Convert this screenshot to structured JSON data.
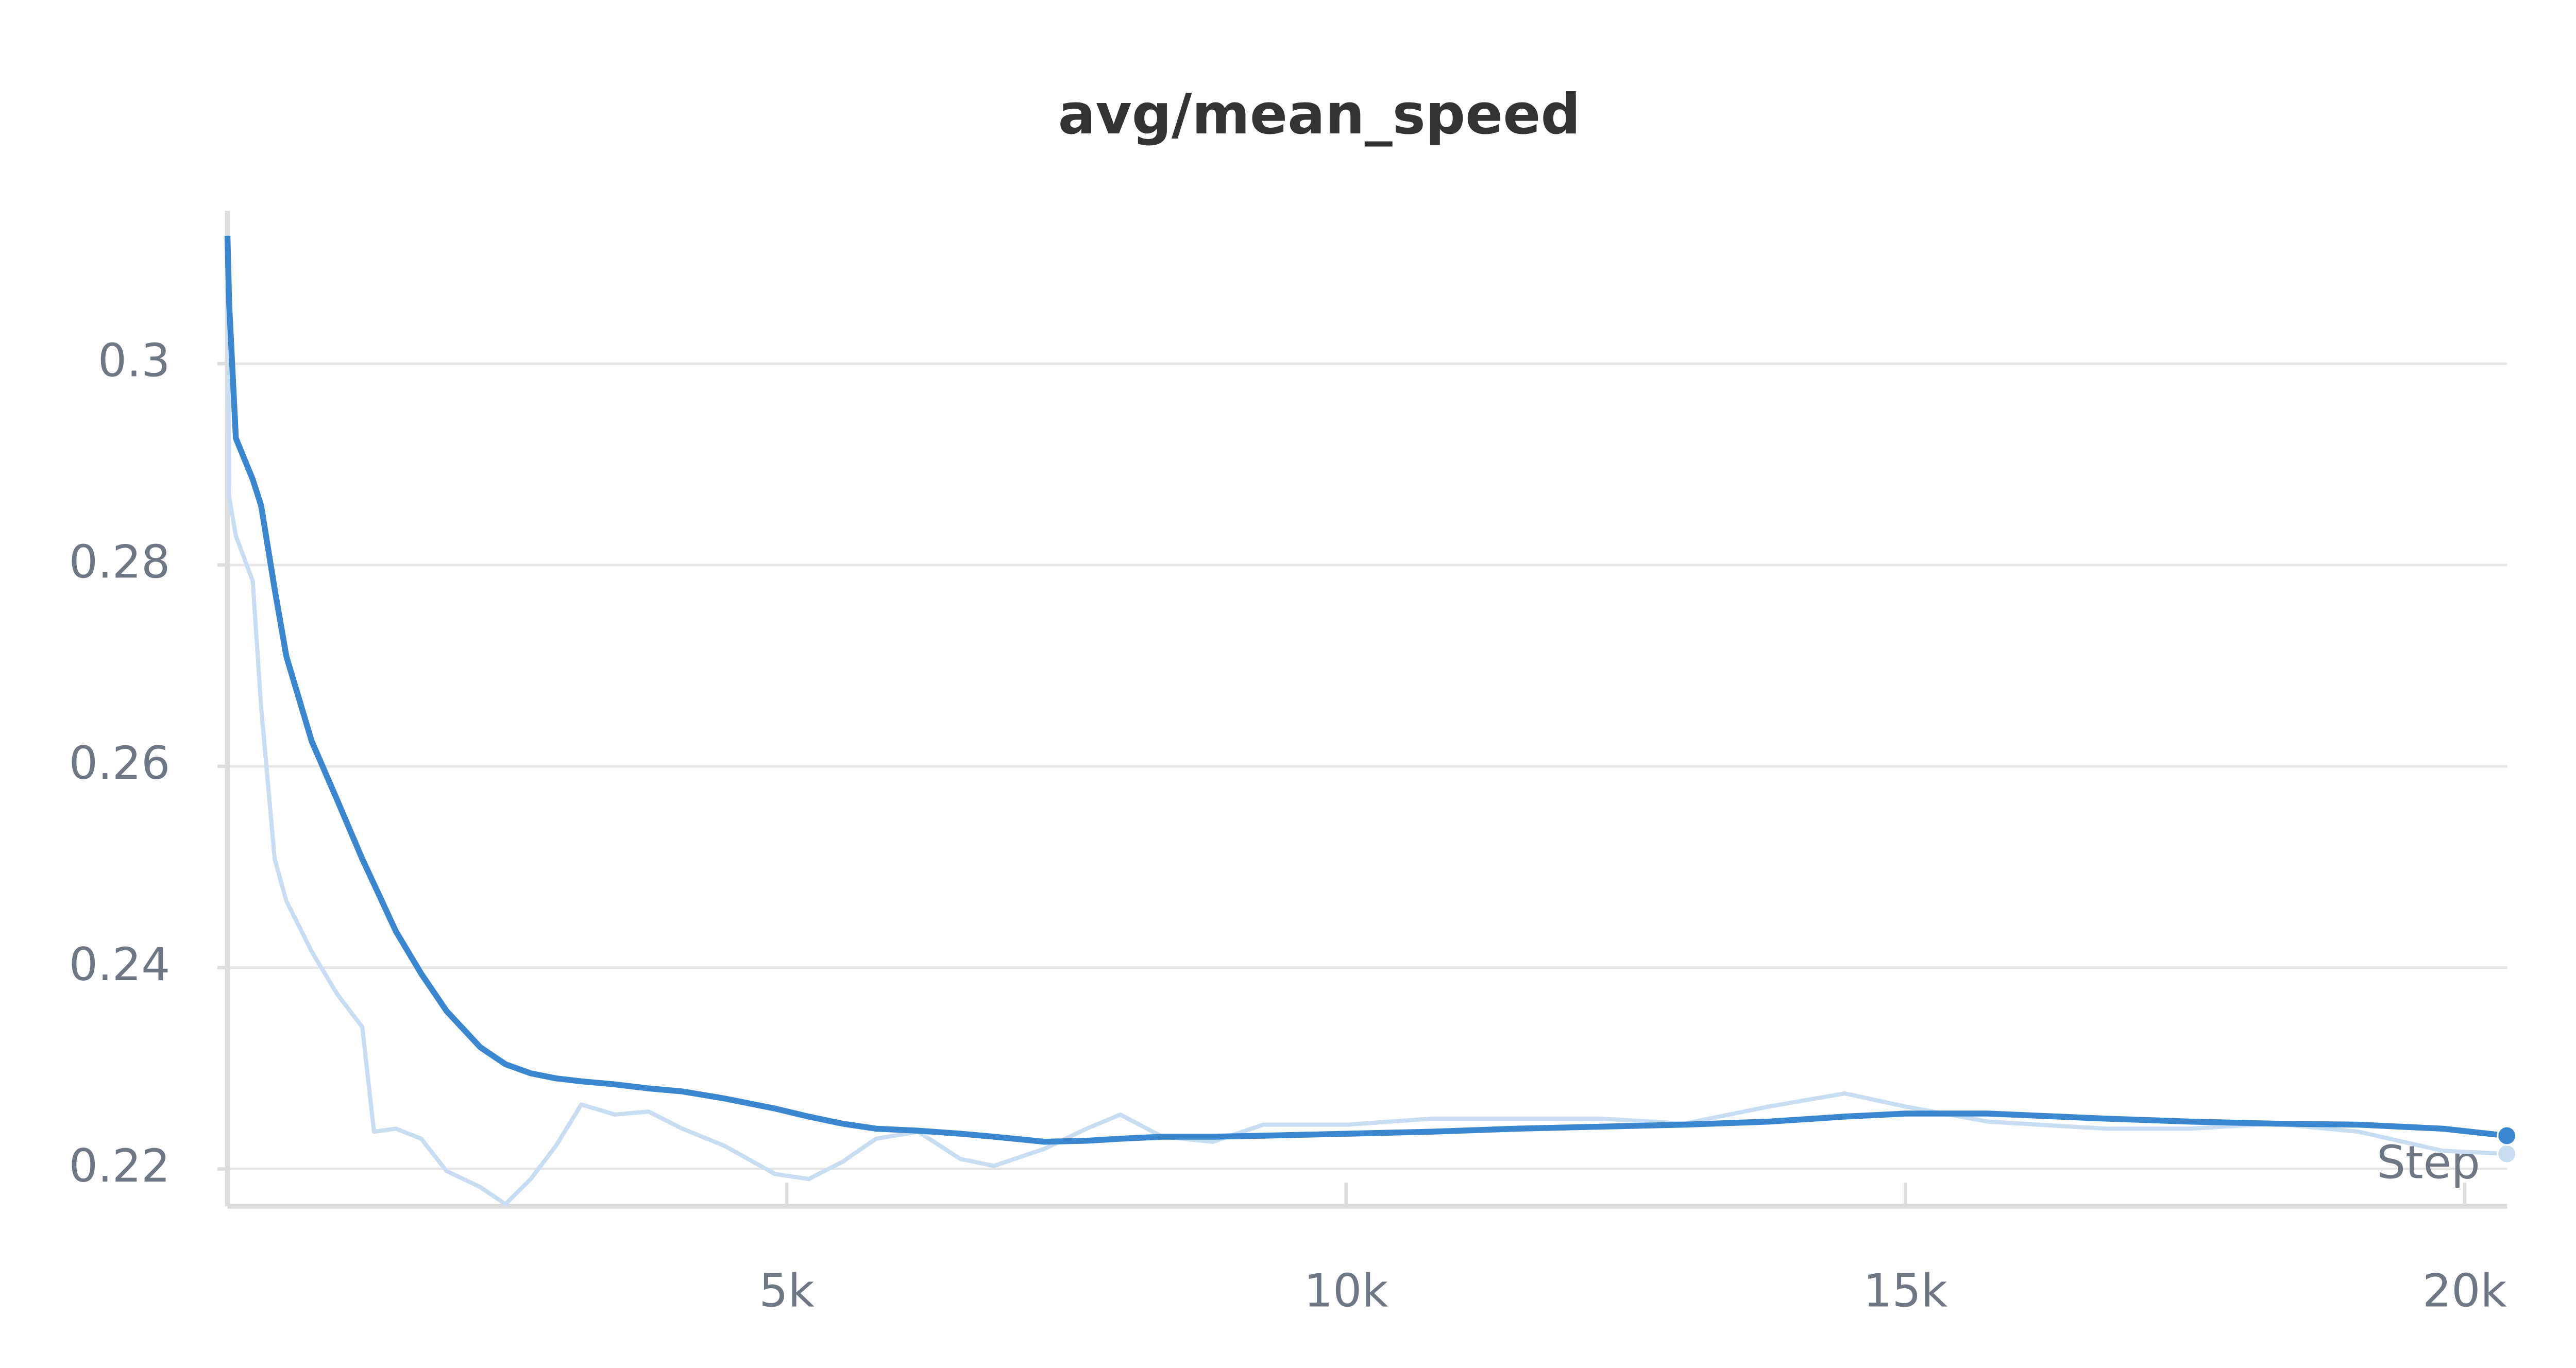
{
  "chart_data": {
    "type": "line",
    "title": "avg/mean_speed",
    "x_label": "Step",
    "x": [
      0,
      15,
      75,
      226,
      301,
      422,
      527,
      753,
      979,
      1205,
      1310,
      1506,
      1732,
      1958,
      2259,
      2485,
      2711,
      2937,
      3163,
      3464,
      3765,
      4066,
      4443,
      4895,
      5196,
      5497,
      5798,
      6175,
      6551,
      6852,
      7304,
      7681,
      7982,
      8358,
      8810,
      9262,
      10015,
      10768,
      11521,
      12274,
      13027,
      13780,
      14458,
      15000,
      15738,
      16792,
      17545,
      18298,
      19051,
      19804,
      20377
    ],
    "series": [
      {
        "color": "#c8ddf2",
        "values": [
          0.3127,
          0.2868,
          0.2829,
          0.2784,
          0.2659,
          0.2508,
          0.2466,
          0.2416,
          0.2374,
          0.2341,
          0.2237,
          0.224,
          0.223,
          0.2198,
          0.2182,
          0.2165,
          0.219,
          0.2223,
          0.2264,
          0.2254,
          0.2257,
          0.224,
          0.2223,
          0.2195,
          0.219,
          0.2207,
          0.223,
          0.2237,
          0.221,
          0.2203,
          0.222,
          0.224,
          0.2254,
          0.2232,
          0.2227,
          0.2244,
          0.2244,
          0.225,
          0.225,
          0.225,
          0.2245,
          0.2262,
          0.2275,
          0.2262,
          0.2247,
          0.224,
          0.224,
          0.2245,
          0.2237,
          0.2218,
          0.2215
        ]
      },
      {
        "color": "#3a87d0",
        "values": [
          0.3127,
          0.306,
          0.2926,
          0.2885,
          0.2859,
          0.2776,
          0.2709,
          0.2625,
          0.2567,
          0.2508,
          0.2483,
          0.2436,
          0.2394,
          0.2357,
          0.2321,
          0.2304,
          0.2295,
          0.229,
          0.2287,
          0.2284,
          0.228,
          0.2277,
          0.227,
          0.226,
          0.2252,
          0.2245,
          0.224,
          0.2238,
          0.2235,
          0.2232,
          0.2227,
          0.2228,
          0.223,
          0.2232,
          0.2232,
          0.2233,
          0.2235,
          0.2237,
          0.224,
          0.2242,
          0.2244,
          0.2247,
          0.2252,
          0.2255,
          0.2255,
          0.225,
          0.2247,
          0.2245,
          0.2244,
          0.224,
          0.2233
        ]
      }
    ],
    "xlim": [
      0,
      20380
    ],
    "ylim": [
      0.2163,
      0.3152
    ],
    "xticks": [
      {
        "value": 5000,
        "label": "5k"
      },
      {
        "value": 10000,
        "label": "10k"
      },
      {
        "value": 15000,
        "label": "15k"
      },
      {
        "value": 20000,
        "label": "20k"
      }
    ],
    "yticks": [
      0.22,
      0.24,
      0.26,
      0.28,
      0.3
    ],
    "grid": true
  }
}
